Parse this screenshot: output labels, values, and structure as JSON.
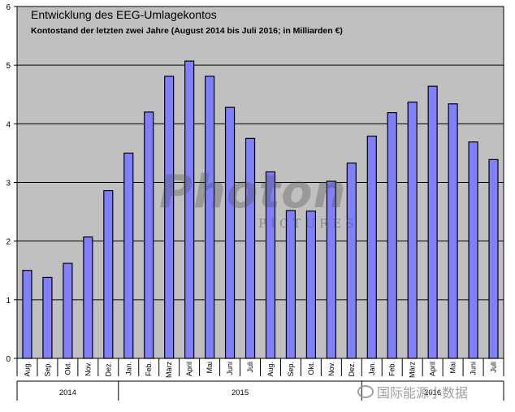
{
  "chart_data": {
    "type": "bar",
    "title": "Entwicklung des EEG-Umlagekontos",
    "subtitle": "Kontostand der letzten zwei Jahre (August 2014 bis Juli 2016; in Milliarden €)",
    "categories": [
      "Aug.",
      "Sep.",
      "Okt.",
      "Nov.",
      "Dez.",
      "Jan.",
      "Feb.",
      "März",
      "April",
      "Mai",
      "Juni",
      "Juli",
      "Aug.",
      "Sep.",
      "Okt.",
      "Nov.",
      "Dez.",
      "Jan.",
      "Feb.",
      "März",
      "April",
      "Mai",
      "Juni",
      "Juli"
    ],
    "values": [
      1.5,
      1.38,
      1.62,
      2.07,
      2.86,
      3.5,
      4.2,
      4.81,
      5.07,
      4.81,
      4.28,
      3.75,
      3.18,
      2.52,
      2.51,
      3.02,
      3.33,
      3.79,
      4.19,
      4.37,
      4.64,
      4.34,
      3.69,
      3.39
    ],
    "year_groups": [
      {
        "label": "2014",
        "count": 5
      },
      {
        "label": "2015",
        "count": 12
      },
      {
        "label": "2016",
        "count": 7
      }
    ],
    "ylim": [
      0,
      6
    ],
    "yticks": [
      "0",
      "1",
      "2",
      "3",
      "4",
      "5",
      "6"
    ],
    "grid": true,
    "bar_color": "#8080ff",
    "background_color": "#c0c0c0"
  },
  "watermark": {
    "main": "Photon",
    "sub": "PICTURES",
    "wechat": "国际能源小数据"
  }
}
